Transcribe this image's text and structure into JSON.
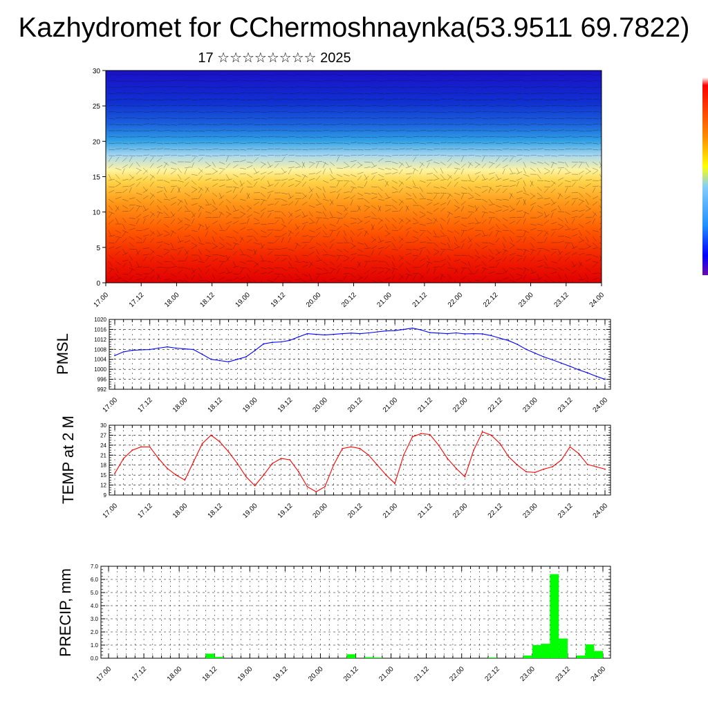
{
  "header": {
    "title": "Kazhydromet for CChermoshnaynka(53.9511 69.7822)",
    "subtitle": "17 ☆☆☆☆☆☆☆☆ 2025"
  },
  "time_labels": [
    "17.00",
    "17.12",
    "18.00",
    "18.12",
    "19.00",
    "19.12",
    "20.00",
    "20.12",
    "21.00",
    "21.12",
    "22.00",
    "22.12",
    "23.00",
    "23.12",
    "24.00"
  ],
  "colors": {
    "pmsl_line": "#0000ff",
    "temp_line": "#ff0000",
    "precip_bar": "#00ff00",
    "colorbar": [
      "#ffffff",
      "#ff0000",
      "#ffa500",
      "#ffff00",
      "#87cefa",
      "#0000ff",
      "#4b0082"
    ]
  },
  "chart_data": [
    {
      "type": "heatmap",
      "name": "cross-section",
      "ylim": [
        0,
        30
      ],
      "yticks": [
        0,
        5,
        10,
        15,
        20,
        25,
        30
      ],
      "x": [
        "17.00",
        "17.12",
        "18.00",
        "18.12",
        "19.00",
        "19.12",
        "20.00",
        "20.12",
        "21.00",
        "21.12",
        "22.00",
        "22.12",
        "23.00",
        "23.12",
        "24.00"
      ],
      "color_bands_by_height": [
        {
          "from": 0,
          "to": 5,
          "color": "red"
        },
        {
          "from": 5,
          "to": 12,
          "color": "orange"
        },
        {
          "from": 12,
          "to": 16,
          "color": "yellow"
        },
        {
          "from": 16,
          "to": 21,
          "color": "light blue"
        },
        {
          "from": 21,
          "to": 30,
          "color": "blue"
        }
      ],
      "wind_barbs": true
    },
    {
      "type": "line",
      "ylabel": "PMSL",
      "ylim": [
        992,
        1020
      ],
      "yticks": [
        992,
        996,
        1000,
        1004,
        1008,
        1012,
        1016,
        1020
      ],
      "x_range": [
        0,
        168
      ],
      "x": [
        0,
        3,
        6,
        9,
        12,
        15,
        18,
        21,
        24,
        27,
        30,
        33,
        36,
        39,
        42,
        45,
        48,
        51,
        54,
        57,
        60,
        63,
        66,
        69,
        72,
        75,
        78,
        81,
        84,
        87,
        90,
        93,
        96,
        99,
        102,
        105,
        108,
        111,
        114,
        117,
        120,
        123,
        126,
        129,
        132,
        135,
        138,
        141,
        144,
        147,
        150,
        153,
        156,
        159,
        162,
        165,
        168
      ],
      "series": [
        {
          "values": [
            1005.5,
            1007,
            1007.6,
            1007.8,
            1007.9,
            1008.5,
            1009,
            1008.5,
            1008.2,
            1007.9,
            1006,
            1004,
            1003.5,
            1003,
            1004,
            1005,
            1007.5,
            1010.2,
            1010.8,
            1011,
            1011.6,
            1013,
            1014.3,
            1014,
            1013.8,
            1014,
            1014.3,
            1014.5,
            1014.3,
            1014.6,
            1015,
            1015.4,
            1015.5,
            1016,
            1016.5,
            1015.8,
            1014.7,
            1014.5,
            1014.3,
            1014.6,
            1014.2,
            1014.3,
            1014.2,
            1013.5,
            1012.5,
            1011.5,
            1010,
            1008,
            1006.5,
            1005,
            1003.8,
            1002.5,
            1001.2,
            999.8,
            998.6,
            997.2,
            996
          ]
        }
      ]
    },
    {
      "type": "line",
      "ylabel": "TEMP at 2 M",
      "ylim": [
        9,
        30
      ],
      "yticks": [
        9,
        12,
        15,
        18,
        21,
        24,
        27,
        30
      ],
      "x_range": [
        0,
        168
      ],
      "x": [
        0,
        3,
        6,
        9,
        12,
        15,
        18,
        21,
        24,
        27,
        30,
        33,
        36,
        39,
        42,
        45,
        48,
        51,
        54,
        57,
        60,
        63,
        66,
        69,
        72,
        75,
        78,
        81,
        84,
        87,
        90,
        93,
        96,
        99,
        102,
        105,
        108,
        111,
        114,
        117,
        120,
        123,
        126,
        129,
        132,
        135,
        138,
        141,
        144,
        147,
        150,
        153,
        156,
        159,
        162,
        165,
        168
      ],
      "series": [
        {
          "values": [
            15.5,
            20,
            22.5,
            23.5,
            23.5,
            20,
            17,
            15,
            13.5,
            19,
            24.5,
            27,
            25,
            22,
            18.5,
            14.5,
            11.8,
            15,
            18.5,
            20,
            19.6,
            16,
            11.5,
            10,
            11.5,
            18,
            23,
            23.5,
            23,
            21,
            18,
            15,
            12.5,
            21,
            26.5,
            27.5,
            27.2,
            24,
            20,
            17,
            14.5,
            22.5,
            28,
            27,
            24.5,
            20.5,
            18,
            16,
            15.8,
            16.8,
            17.5,
            19.5,
            23.5,
            21.5,
            18.2,
            17.5,
            16.8
          ]
        }
      ]
    },
    {
      "type": "bar",
      "ylabel": "PRECIP, mm",
      "ylim": [
        0,
        7
      ],
      "yticks": [
        "0.0",
        "1.0",
        "2.0",
        "3.0",
        "4.0",
        "5.0",
        "6.0",
        "7.0"
      ],
      "x_range": [
        0,
        168
      ],
      "bar_width_hours": 3,
      "bars": [
        {
          "start": 33,
          "value": 0.35
        },
        {
          "start": 36,
          "value": 0.1
        },
        {
          "start": 81,
          "value": 0.3
        },
        {
          "start": 87,
          "value": 0.08
        },
        {
          "start": 90,
          "value": 0.05
        },
        {
          "start": 129,
          "value": 0.05
        },
        {
          "start": 141,
          "value": 0.2
        },
        {
          "start": 144,
          "value": 1.0
        },
        {
          "start": 147,
          "value": 1.1
        },
        {
          "start": 150,
          "value": 6.4
        },
        {
          "start": 153,
          "value": 1.5
        },
        {
          "start": 159,
          "value": 0.2
        },
        {
          "start": 162,
          "value": 1.05
        },
        {
          "start": 165,
          "value": 0.55
        }
      ]
    }
  ]
}
